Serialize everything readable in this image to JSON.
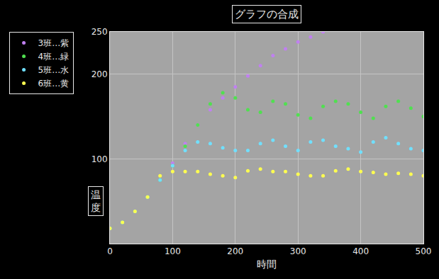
{
  "chart_data": {
    "type": "line",
    "title": "グラフの合成",
    "x_label": "時間",
    "y_label": "温度",
    "x": [
      0,
      20,
      40,
      60,
      80,
      100,
      120,
      140,
      160,
      180,
      200,
      220,
      240,
      260,
      280,
      300,
      320,
      340,
      360,
      380,
      400,
      420,
      440,
      460,
      480,
      500
    ],
    "series": [
      {
        "name": "3班…紫",
        "color": "#c080f0",
        "marker": "circle",
        "values": [
          18,
          25,
          38,
          55,
          75,
          95,
          118,
          140,
          158,
          172,
          185,
          198,
          210,
          222,
          230,
          238,
          244,
          250,
          null,
          null,
          null,
          null,
          null,
          null,
          null,
          null
        ]
      },
      {
        "name": "4班…緑",
        "color": "#50e050",
        "marker": "circle",
        "values": [
          18,
          25,
          38,
          55,
          75,
          92,
          115,
          140,
          165,
          178,
          172,
          158,
          155,
          168,
          165,
          152,
          148,
          162,
          168,
          165,
          155,
          148,
          162,
          168,
          160,
          150
        ]
      },
      {
        "name": "5班…水",
        "color": "#70e0ff",
        "marker": "circle",
        "values": [
          18,
          25,
          38,
          55,
          75,
          92,
          110,
          120,
          118,
          113,
          110,
          110,
          118,
          122,
          115,
          110,
          120,
          122,
          115,
          112,
          108,
          120,
          125,
          118,
          112,
          110
        ]
      },
      {
        "name": "6班…黄",
        "color": "#ffff50",
        "marker": "circle",
        "values": [
          18,
          25,
          38,
          55,
          80,
          85,
          85,
          85,
          82,
          80,
          78,
          86,
          88,
          85,
          85,
          82,
          80,
          80,
          86,
          88,
          85,
          84,
          82,
          83,
          82,
          80
        ]
      }
    ],
    "xlim": [
      0,
      500
    ],
    "xticks": [
      0,
      100,
      200,
      300,
      400,
      500
    ],
    "ylim": [
      0,
      250
    ],
    "yticks": [
      100,
      200,
      250
    ],
    "grid": true,
    "legend": "left"
  }
}
